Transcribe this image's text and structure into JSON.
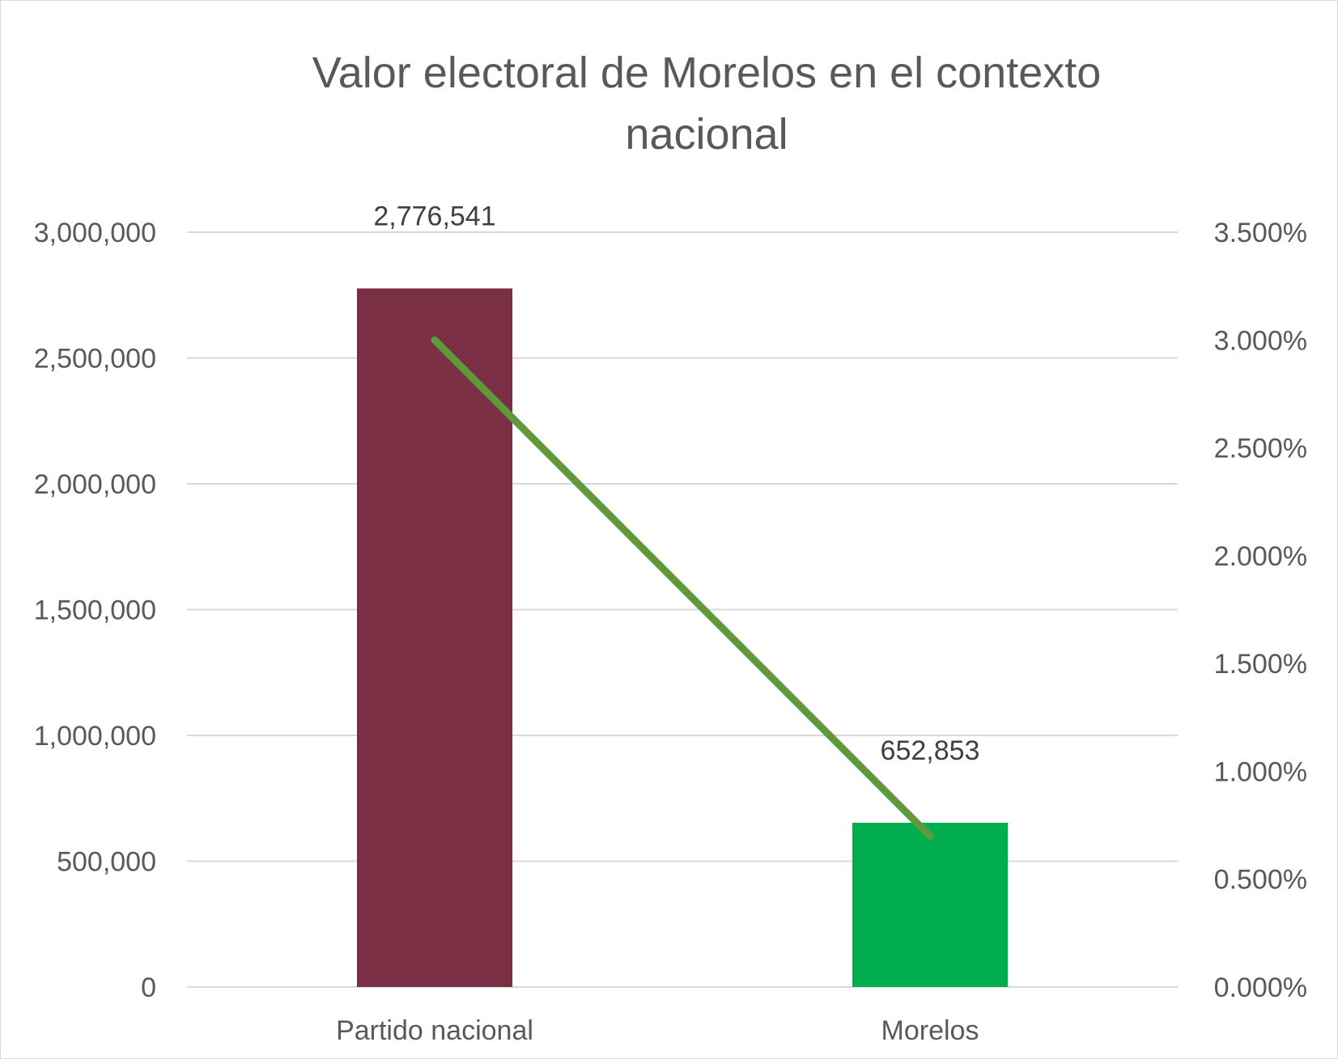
{
  "chart_data": {
    "type": "bar",
    "title_lines": [
      "Valor electoral de Morelos en el contexto",
      "nacional"
    ],
    "categories": [
      "Partido nacional",
      "Morelos"
    ],
    "series": [
      {
        "kind": "bar",
        "axis": "left",
        "values": [
          2776541,
          652853
        ],
        "colors": [
          "#7b2f45",
          "#00ae4f"
        ],
        "data_labels": [
          "2,776,541",
          "652,853"
        ]
      },
      {
        "kind": "line",
        "axis": "right",
        "values": [
          3.0,
          0.7
        ],
        "color": "#5e9a3c"
      }
    ],
    "y_left": {
      "min": 0,
      "max": 3000000,
      "step": 500000,
      "tick_labels": [
        "0",
        "500,000",
        "1,000,000",
        "1,500,000",
        "2,000,000",
        "2,500,000",
        "3,000,000"
      ]
    },
    "y_right": {
      "min": 0,
      "max": 3.5,
      "step": 0.5,
      "tick_labels": [
        "0.000%",
        "0.500%",
        "1.000%",
        "1.500%",
        "2.000%",
        "2.500%",
        "3.000%",
        "3.500%"
      ]
    },
    "grid": true,
    "legend": "none"
  }
}
